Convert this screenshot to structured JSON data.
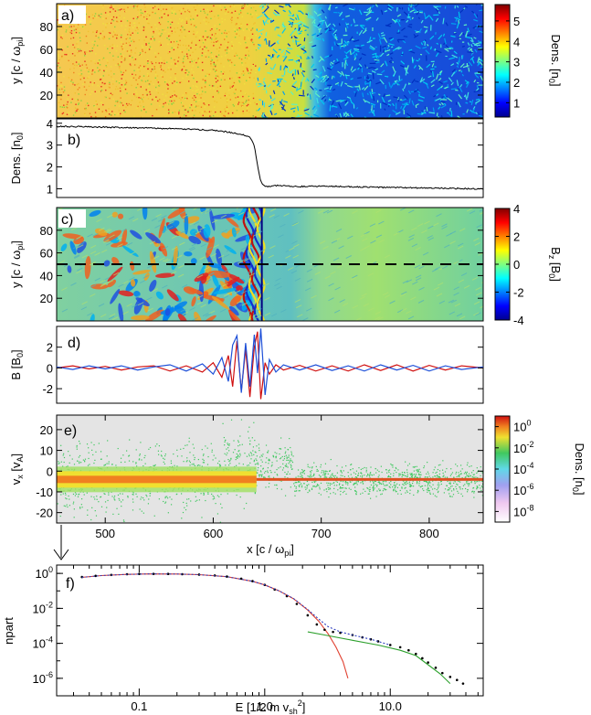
{
  "chart_data": [
    {
      "id": "a",
      "type": "heatmap",
      "panel_label": "a)",
      "ylabel": "y [c / ω",
      "ylabel_sub": "pi",
      "ylabel_tail": "]",
      "xlim": [
        455,
        850
      ],
      "ylim": [
        0,
        100
      ],
      "yticks": [
        20,
        40,
        60,
        80
      ],
      "colorbar": {
        "label": "Dens. [n",
        "label_sub": "0",
        "label_tail": "]",
        "ticks": [
          1,
          2,
          3,
          4,
          5
        ],
        "range": [
          0.3,
          5.8
        ],
        "colormap": "jet"
      },
      "shock_x": 640,
      "upstream_mean": 1.0,
      "downstream_mean": 3.9
    },
    {
      "id": "b",
      "type": "line",
      "panel_label": "b)",
      "ylabel": "Dens. [n",
      "ylabel_sub": "0",
      "ylabel_tail": "]",
      "xlim": [
        455,
        850
      ],
      "ylim": [
        0.6,
        4.2
      ],
      "yticks": [
        1,
        2,
        3,
        4
      ],
      "series": [
        {
          "color": "#000000",
          "x": [
            455,
            480,
            500,
            520,
            540,
            560,
            580,
            600,
            610,
            620,
            630,
            635,
            638,
            640,
            642,
            644,
            646,
            650,
            660,
            680,
            700,
            720,
            740,
            760,
            780,
            800,
            820,
            840,
            850
          ],
          "values": [
            3.85,
            3.84,
            3.82,
            3.8,
            3.78,
            3.75,
            3.72,
            3.68,
            3.62,
            3.55,
            3.45,
            3.3,
            3.0,
            2.4,
            1.8,
            1.35,
            1.15,
            1.1,
            1.15,
            1.1,
            1.12,
            1.1,
            1.08,
            1.06,
            1.05,
            1.03,
            1.02,
            1.0,
            0.98
          ]
        }
      ]
    },
    {
      "id": "c",
      "type": "heatmap",
      "panel_label": "c)",
      "ylabel": "y [c / ω",
      "ylabel_sub": "pi",
      "ylabel_tail": "]",
      "xlim": [
        455,
        850
      ],
      "ylim": [
        0,
        100
      ],
      "yticks": [
        20,
        40,
        60,
        80
      ],
      "cut_y": 50,
      "colorbar": {
        "label": "B",
        "label_sub": "z",
        "label_tail": " [B",
        "label_sub2": "0",
        "label_end": "]",
        "ticks": [
          -4,
          -2,
          0,
          2,
          4
        ],
        "range": [
          -4,
          4
        ],
        "colormap": "jet"
      },
      "shock_x": 645
    },
    {
      "id": "d",
      "type": "line",
      "panel_label": "d)",
      "ylabel": "B [B",
      "ylabel_sub": "0",
      "ylabel_tail": "]",
      "xlim": [
        455,
        850
      ],
      "ylim": [
        -3.4,
        4.0
      ],
      "yticks": [
        -2,
        0,
        2
      ],
      "series": [
        {
          "color": "#d01010",
          "x": [
            455,
            470,
            485,
            500,
            515,
            530,
            545,
            560,
            575,
            590,
            600,
            608,
            614,
            618,
            622,
            626,
            630,
            634,
            638,
            641,
            644,
            648,
            652,
            658,
            665,
            680,
            695,
            710,
            725,
            740,
            755,
            770,
            785,
            800,
            815,
            830,
            850
          ],
          "values": [
            0,
            0.2,
            -0.1,
            0.15,
            -0.2,
            0.1,
            0.2,
            -0.3,
            0.2,
            -0.4,
            0.5,
            -0.9,
            1.2,
            -1.8,
            2.6,
            -2.2,
            1.8,
            -2.8,
            2.0,
            3.5,
            -3.0,
            0.5,
            -0.6,
            0.3,
            -0.2,
            0.25,
            -0.3,
            0.2,
            -0.3,
            0.3,
            -0.25,
            0.3,
            -0.3,
            0.25,
            -0.2,
            0.2,
            0
          ]
        },
        {
          "color": "#1e50d8",
          "x": [
            455,
            470,
            485,
            500,
            515,
            530,
            545,
            560,
            575,
            590,
            600,
            608,
            614,
            618,
            622,
            626,
            630,
            634,
            638,
            641,
            644,
            648,
            652,
            658,
            665,
            680,
            695,
            710,
            725,
            740,
            755,
            770,
            785,
            800,
            815,
            830,
            850
          ],
          "values": [
            0.1,
            -0.15,
            0.2,
            -0.1,
            0.2,
            -0.2,
            0.1,
            0.3,
            -0.3,
            0.4,
            -0.6,
            1.0,
            -1.3,
            2.2,
            3.1,
            -2.4,
            2.4,
            -1.8,
            3.2,
            -0.5,
            3.8,
            -2.6,
            0.8,
            -0.4,
            0.3,
            -0.2,
            0.3,
            -0.25,
            0.2,
            -0.3,
            0.3,
            -0.2,
            0.25,
            -0.3,
            0.2,
            -0.15,
            0.1
          ]
        }
      ]
    },
    {
      "id": "e",
      "type": "heatmap",
      "panel_label": "e)",
      "ylabel": "v",
      "ylabel_sub": "x",
      "ylabel_tail": " [v",
      "ylabel_sub2": "A",
      "ylabel_end": "]",
      "xlabel": "x [c / ω",
      "xlabel_sub": "pi",
      "xlabel_tail": "]",
      "xlim": [
        455,
        850
      ],
      "ylim": [
        -25,
        27
      ],
      "xticks": [
        500,
        600,
        700,
        800
      ],
      "yticks": [
        -20,
        -10,
        0,
        10,
        20
      ],
      "core_v": -4,
      "colorbar": {
        "label": "Dens. [n",
        "label_sub": "0",
        "label_tail": "]",
        "ticks": [
          "10^0",
          "10^-2",
          "10^-4",
          "10^-6",
          "10^-8"
        ],
        "tick_exponents": [
          0,
          -2,
          -4,
          -6,
          -8
        ],
        "range": [
          -9,
          1
        ],
        "scale": "log"
      }
    },
    {
      "id": "f",
      "type": "line",
      "panel_label": "f)",
      "ylabel": "npart",
      "xlabel": "E [1/2 m v",
      "xlabel_sub": "sh",
      "xlabel_sup": "2",
      "xlabel_tail": "]",
      "xscale": "log",
      "yscale": "log",
      "xlim": [
        0.022,
        55
      ],
      "ylim": [
        1e-07,
        3
      ],
      "xticks": [
        0.1,
        1.0,
        10.0
      ],
      "xtick_labels": [
        "0.1",
        "1.0",
        "10.0"
      ],
      "yticks": [
        "10^0",
        "10^-2",
        "10^-4",
        "10^-6"
      ],
      "ytick_exponents": [
        0,
        -2,
        -4,
        -6
      ],
      "series": [
        {
          "kind": "line",
          "color": "#e04030",
          "x": [
            0.035,
            0.05,
            0.08,
            0.12,
            0.2,
            0.3,
            0.5,
            0.8,
            1.0,
            1.3,
            1.7,
            2.2,
            2.7,
            3.2,
            3.7,
            4.2,
            4.6
          ],
          "values": [
            0.6,
            0.75,
            0.88,
            0.93,
            0.92,
            0.85,
            0.65,
            0.35,
            0.22,
            0.1,
            0.035,
            0.008,
            0.0018,
            0.00035,
            6e-05,
            9e-06,
            1e-06
          ]
        },
        {
          "kind": "line",
          "color": "#2ca02c",
          "x": [
            2.2,
            3,
            5,
            8,
            12,
            16,
            20,
            25,
            30
          ],
          "values": [
            0.00045,
            0.0003,
            0.00015,
            8e-05,
            4e-05,
            2e-05,
            6e-06,
            1.8e-06,
            5e-07
          ]
        },
        {
          "kind": "points",
          "color": "#000000",
          "x": [
            0.035,
            0.045,
            0.06,
            0.08,
            0.1,
            0.13,
            0.17,
            0.22,
            0.3,
            0.4,
            0.5,
            0.65,
            0.8,
            1.0,
            1.2,
            1.5,
            1.8,
            2.2,
            2.6,
            3.0,
            3.5,
            4.0,
            5.0,
            6.0,
            7.0,
            8.0,
            10.0,
            12.0,
            14.0,
            16.0,
            18.0,
            20.0,
            23.0,
            26.0,
            30.0,
            34.0,
            38.0
          ],
          "values": [
            0.62,
            0.72,
            0.82,
            0.9,
            0.93,
            0.94,
            0.93,
            0.9,
            0.85,
            0.76,
            0.66,
            0.5,
            0.36,
            0.22,
            0.12,
            0.05,
            0.018,
            0.004,
            0.0012,
            0.0006,
            0.00045,
            0.0004,
            0.0003,
            0.00022,
            0.00017,
            0.00013,
            8e-05,
            6e-05,
            4e-05,
            2.5e-05,
            1.4e-05,
            8e-06,
            4e-06,
            2e-06,
            1.2e-06,
            8e-07,
            5e-07
          ]
        },
        {
          "kind": "dotted",
          "color": "#3040c0",
          "x": [
            0.035,
            0.05,
            0.08,
            0.12,
            0.2,
            0.3,
            0.5,
            0.8,
            1.0,
            1.3,
            1.7,
            2.2,
            2.7,
            3.2,
            4.0,
            5.0,
            7.0,
            10.0
          ],
          "values": [
            0.6,
            0.75,
            0.88,
            0.93,
            0.92,
            0.85,
            0.65,
            0.35,
            0.22,
            0.1,
            0.036,
            0.0085,
            0.0024,
            0.0009,
            0.00045,
            0.0003,
            0.00017,
            8e-05
          ]
        }
      ]
    }
  ]
}
